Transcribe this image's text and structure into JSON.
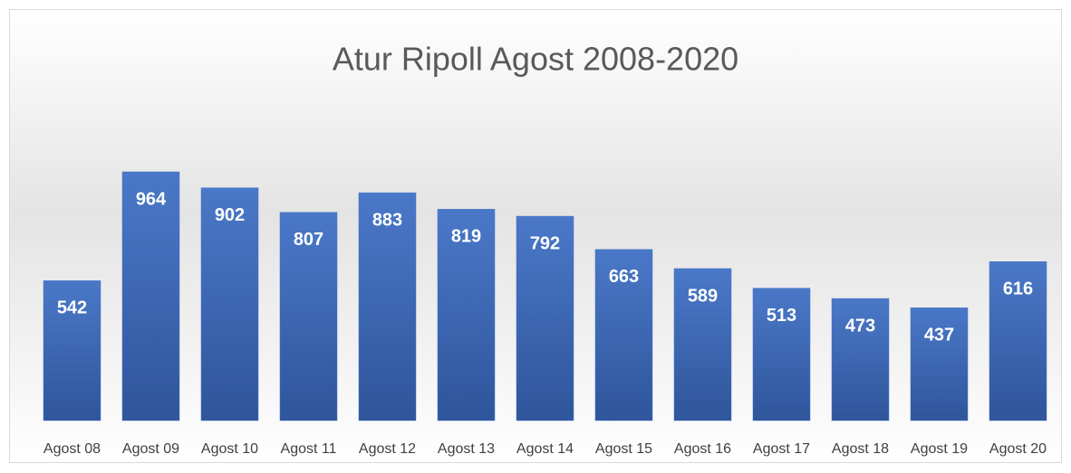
{
  "chart_data": {
    "type": "bar",
    "title": "Atur Ripoll Agost 2008-2020",
    "categories": [
      "Agost 08",
      "Agost 09",
      "Agost 10",
      "Agost 11",
      "Agost 12",
      "Agost 13",
      "Agost 14",
      "Agost 15",
      "Agost 16",
      "Agost 17",
      "Agost 18",
      "Agost 19",
      "Agost 20"
    ],
    "values": [
      542,
      964,
      902,
      807,
      883,
      819,
      792,
      663,
      589,
      513,
      473,
      437,
      616
    ],
    "color": "#4472c4"
  }
}
